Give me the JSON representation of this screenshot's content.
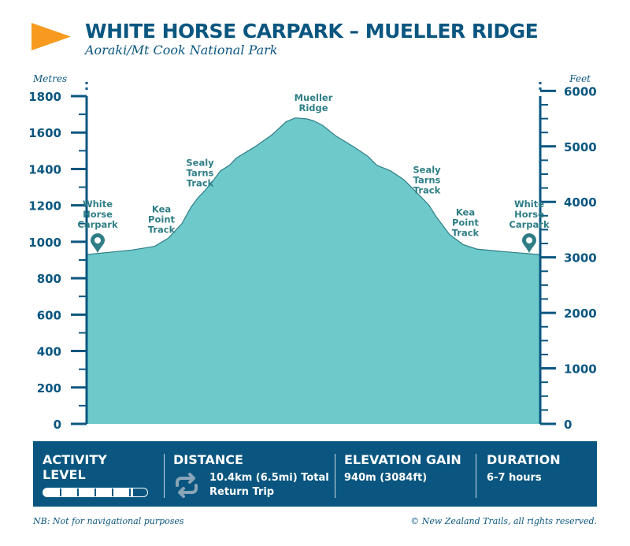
{
  "header": {
    "title": "WHITE HORSE CARPARK – MUELLER RIDGE",
    "subtitle": "Aoraki/Mt Cook National Park"
  },
  "chart_data": {
    "type": "area",
    "ylabel_left": "Metres",
    "ylabel_right": "Feet",
    "ylim": [
      0,
      1800
    ],
    "yticks_left": [
      0,
      200,
      400,
      600,
      800,
      1000,
      1200,
      1400,
      1600,
      1800
    ],
    "yticks_right_ft": [
      0,
      1000,
      2000,
      3000,
      4000,
      5000,
      6000
    ],
    "series": [
      {
        "values": [
          [
            0,
            930
          ],
          [
            4,
            940
          ],
          [
            10,
            955
          ],
          [
            15,
            975
          ],
          [
            18,
            1020
          ],
          [
            21,
            1100
          ],
          [
            23,
            1190
          ],
          [
            24.5,
            1240
          ],
          [
            26,
            1280
          ],
          [
            28,
            1340
          ],
          [
            29.5,
            1390
          ],
          [
            31.5,
            1420
          ],
          [
            33,
            1460
          ],
          [
            37,
            1520
          ],
          [
            41,
            1590
          ],
          [
            44,
            1660
          ],
          [
            46,
            1680
          ],
          [
            48.5,
            1675
          ],
          [
            50,
            1665
          ],
          [
            52,
            1640
          ],
          [
            55,
            1580
          ],
          [
            59,
            1520
          ],
          [
            62,
            1470
          ],
          [
            64,
            1420
          ],
          [
            67,
            1390
          ],
          [
            70,
            1340
          ],
          [
            72,
            1290
          ],
          [
            74,
            1240
          ],
          [
            75.5,
            1200
          ],
          [
            77,
            1140
          ],
          [
            80,
            1040
          ],
          [
            83,
            985
          ],
          [
            86,
            960
          ],
          [
            90,
            950
          ],
          [
            95,
            940
          ],
          [
            100,
            930
          ]
        ]
      }
    ],
    "annotations": [
      {
        "text": "White Horse Carpark",
        "x": 0,
        "lines": [
          "White",
          "Horse",
          "Carpark"
        ],
        "marker": true
      },
      {
        "text": "Kea Point Track",
        "x": 16.5,
        "lines": [
          "Kea",
          "Point",
          "Track"
        ]
      },
      {
        "text": "Sealy Tarns Track",
        "x": 25,
        "lines": [
          "Sealy",
          "Tarns",
          "Track"
        ]
      },
      {
        "text": "Mueller Ridge",
        "x": 50,
        "lines": [
          "Mueller",
          "Ridge"
        ]
      },
      {
        "text": "Sealy Tarns Track",
        "x": 75,
        "lines": [
          "Sealy",
          "Tarns",
          "Track"
        ]
      },
      {
        "text": "Kea Point Track",
        "x": 83.5,
        "lines": [
          "Kea",
          "Point",
          "Track"
        ]
      },
      {
        "text": "White Horse Carpark",
        "x": 100,
        "lines": [
          "White",
          "Horse",
          "Carpark"
        ],
        "marker": true
      }
    ],
    "colors": {
      "fill": "#6ec9ca",
      "stroke": "#2f7e86",
      "axis": "#0a5680",
      "label": "#2f7e86"
    }
  },
  "stats": {
    "activity_label_1": "ACTIVITY",
    "activity_label_2": "LEVEL",
    "activity_level": 5,
    "activity_max": 6,
    "distance_label": "DISTANCE",
    "distance_value_1": "10.4km (6.5mi) Total",
    "distance_value_2": "Return Trip",
    "distance_icon": "repeat-icon",
    "elevation_label": "ELEVATION GAIN",
    "elevation_value": "940m (3084ft)",
    "duration_label": "DURATION",
    "duration_value": "6-7 hours"
  },
  "footer": {
    "note": "NB: Not for navigational purposes",
    "copyright": "© New Zealand Trails, all rights reserved."
  }
}
